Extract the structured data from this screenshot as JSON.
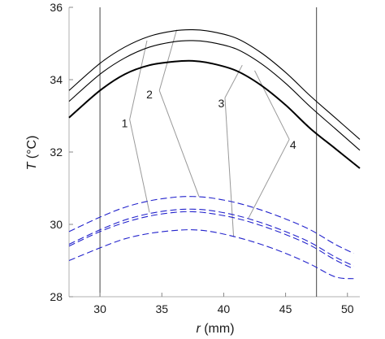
{
  "chart_data": {
    "type": "line",
    "xlabel_var": "r",
    "xlabel_unit": " (mm)",
    "ylabel_var": "T",
    "ylabel_unit": " (°C)",
    "xlim": [
      27.5,
      51
    ],
    "ylim": [
      28,
      36
    ],
    "xticks": [
      "30",
      "35",
      "40",
      "45",
      "50"
    ],
    "yticks": [
      "28",
      "30",
      "32",
      "34",
      "36"
    ],
    "vlines": [
      30,
      47.5
    ],
    "colors": {
      "solid": "#000000",
      "dashed": "#2222cc",
      "leader": "#999999"
    },
    "series_solid": [
      {
        "x": [
          27.5,
          30,
          32,
          34,
          36,
          37.5,
          39,
          41,
          43,
          45,
          47,
          49,
          51
        ],
        "y": [
          33.7,
          34.45,
          34.9,
          35.2,
          35.35,
          35.38,
          35.33,
          35.15,
          34.75,
          34.2,
          33.55,
          32.95,
          32.35
        ]
      },
      {
        "x": [
          27.5,
          30,
          32,
          34,
          36,
          37.5,
          39,
          41,
          43,
          45,
          47,
          49,
          51
        ],
        "y": [
          33.4,
          34.15,
          34.6,
          34.9,
          35.05,
          35.08,
          35.03,
          34.85,
          34.45,
          33.9,
          33.25,
          32.65,
          32.05
        ]
      },
      {
        "x": [
          27.5,
          30,
          32,
          34,
          36,
          37.5,
          39,
          41,
          43,
          45,
          47,
          49,
          51
        ],
        "y": [
          32.95,
          33.7,
          34.15,
          34.4,
          34.5,
          34.52,
          34.45,
          34.25,
          33.85,
          33.3,
          32.65,
          32.1,
          31.55
        ]
      }
    ],
    "series_dashed": [
      {
        "x": [
          27.5,
          30,
          32,
          34,
          36,
          37.5,
          39,
          41,
          43,
          45,
          47,
          49,
          50.5
        ],
        "y": [
          29.8,
          30.2,
          30.47,
          30.65,
          30.75,
          30.77,
          30.73,
          30.6,
          30.4,
          30.15,
          29.85,
          29.45,
          29.2
        ]
      },
      {
        "x": [
          27.5,
          30,
          32,
          34,
          36,
          37.5,
          39,
          41,
          43,
          45,
          47,
          49,
          50.5
        ],
        "y": [
          29.45,
          29.85,
          30.12,
          30.3,
          30.4,
          30.42,
          30.38,
          30.25,
          30.05,
          29.8,
          29.5,
          29.1,
          28.85
        ]
      },
      {
        "x": [
          27.5,
          30,
          32,
          34,
          36,
          37.5,
          39,
          41,
          43,
          45,
          47,
          49,
          50.5
        ],
        "y": [
          29.4,
          29.8,
          30.05,
          30.23,
          30.33,
          30.35,
          30.3,
          30.17,
          29.97,
          29.72,
          29.42,
          29.02,
          28.77
        ]
      },
      {
        "x": [
          27.5,
          30,
          32,
          34,
          36,
          37.5,
          39,
          41,
          43,
          45,
          47,
          49,
          50.5
        ],
        "y": [
          29.0,
          29.35,
          29.6,
          29.75,
          29.83,
          29.85,
          29.8,
          29.65,
          29.45,
          29.2,
          28.9,
          28.55,
          28.5
        ]
      }
    ],
    "labels": [
      {
        "text": "1",
        "x": 32.0,
        "y": 32.8,
        "ax": 32.4,
        "ay": 32.9,
        "up": [
          33.8,
          35.08
        ],
        "down": [
          34.0,
          30.33
        ]
      },
      {
        "text": "2",
        "x": 34.0,
        "y": 33.6,
        "ax": 34.8,
        "ay": 33.7,
        "up": [
          36.2,
          35.38
        ],
        "down": [
          38.0,
          30.77
        ]
      },
      {
        "text": "3",
        "x": 39.8,
        "y": 33.35,
        "ax": 40.1,
        "ay": 33.5,
        "up": [
          41.5,
          34.4
        ],
        "down": [
          40.8,
          29.65
        ]
      },
      {
        "text": "4",
        "x": 45.6,
        "y": 32.2,
        "ax": 45.3,
        "ay": 32.35,
        "up": [
          42.5,
          34.25
        ],
        "down": [
          42.0,
          30.17
        ]
      }
    ]
  }
}
